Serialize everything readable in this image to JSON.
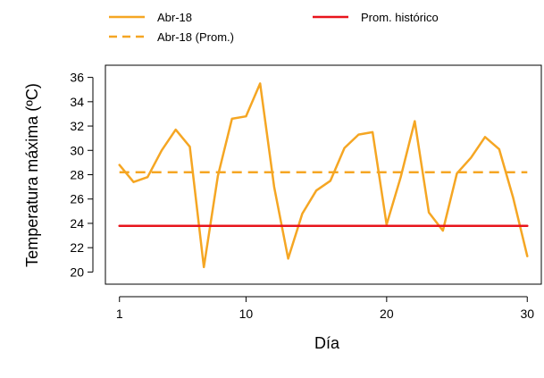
{
  "chart_data": {
    "type": "line",
    "title": "",
    "xlabel": "Día",
    "ylabel": "Temperatura máxima (ºC)",
    "xlim": [
      0,
      31
    ],
    "ylim": [
      19,
      37
    ],
    "x_ticks": [
      1,
      10,
      20,
      30
    ],
    "y_ticks": [
      20,
      22,
      24,
      26,
      28,
      30,
      32,
      34,
      36
    ],
    "grid": false,
    "legend_position": "top",
    "x": [
      1,
      2,
      3,
      4,
      5,
      6,
      7,
      8,
      9,
      10,
      11,
      12,
      13,
      14,
      15,
      16,
      17,
      18,
      19,
      20,
      21,
      22,
      23,
      24,
      25,
      26,
      27,
      28,
      29,
      30
    ],
    "series": [
      {
        "name": "Abr-18",
        "color": "#F5A623",
        "style": "solid",
        "values": [
          28.8,
          27.4,
          27.8,
          30.0,
          31.7,
          30.3,
          20.4,
          27.9,
          32.6,
          32.8,
          35.5,
          27.0,
          21.1,
          24.8,
          26.7,
          27.5,
          30.2,
          31.3,
          31.5,
          23.9,
          27.8,
          32.4,
          24.9,
          23.4,
          28.1,
          29.4,
          31.1,
          30.1,
          26.1,
          21.3
        ]
      },
      {
        "name": "Abr-18 (Prom.)",
        "color": "#F5A623",
        "style": "dashed",
        "values": [
          28.2,
          28.2,
          28.2,
          28.2,
          28.2,
          28.2,
          28.2,
          28.2,
          28.2,
          28.2,
          28.2,
          28.2,
          28.2,
          28.2,
          28.2,
          28.2,
          28.2,
          28.2,
          28.2,
          28.2,
          28.2,
          28.2,
          28.2,
          28.2,
          28.2,
          28.2,
          28.2,
          28.2,
          28.2,
          28.2
        ]
      },
      {
        "name": "Prom. histórico",
        "color": "#E8141C",
        "style": "solid",
        "values": [
          23.8,
          23.8,
          23.8,
          23.8,
          23.8,
          23.8,
          23.8,
          23.8,
          23.8,
          23.8,
          23.8,
          23.8,
          23.8,
          23.8,
          23.8,
          23.8,
          23.8,
          23.8,
          23.8,
          23.8,
          23.8,
          23.8,
          23.8,
          23.8,
          23.8,
          23.8,
          23.8,
          23.8,
          23.8,
          23.8
        ]
      }
    ]
  }
}
